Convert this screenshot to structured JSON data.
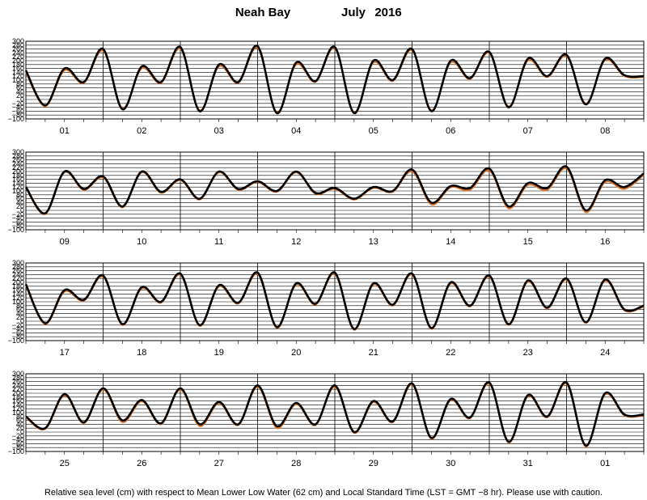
{
  "header": {
    "station": "Neah Bay",
    "month": "July",
    "year": "2016"
  },
  "footnote": "Relative sea level (cm) with respect to Mean Lower Low Water (62 cm) and Local Standard Time (LST = GMT −8 hr). Please use with caution.",
  "colors": {
    "observed": "#000000",
    "predicted": "#e06c1a",
    "grid": "#000000"
  },
  "chart_data": {
    "type": "line",
    "title": "Neah Bay July 2016",
    "ylabel": "",
    "xlabel": "",
    "ylim": [
      -100,
      300
    ],
    "yticks": [
      300,
      280,
      260,
      240,
      220,
      200,
      180,
      160,
      140,
      120,
      100,
      80,
      60,
      40,
      20,
      0,
      -20,
      -40,
      -60,
      -80,
      -100
    ],
    "panels": [
      {
        "days": [
          "01",
          "02",
          "03",
          "04",
          "05",
          "06",
          "07",
          "08"
        ]
      },
      {
        "days": [
          "09",
          "10",
          "11",
          "12",
          "13",
          "14",
          "15",
          "16"
        ]
      },
      {
        "days": [
          "17",
          "18",
          "19",
          "20",
          "21",
          "22",
          "23",
          "24"
        ]
      },
      {
        "days": [
          "25",
          "26",
          "27",
          "28",
          "29",
          "30",
          "31",
          "01"
        ]
      }
    ],
    "series": [
      {
        "style": "observed",
        "points_per_day": 4,
        "values": [
          150,
          -30,
          160,
          90,
          260,
          -50,
          170,
          90,
          270,
          -60,
          180,
          90,
          275,
          -70,
          190,
          95,
          270,
          -70,
          200,
          100,
          260,
          -60,
          200,
          110,
          245,
          -40,
          210,
          120,
          230,
          -25,
          210,
          125,
          120,
          -15,
          200,
          110,
          175,
          20,
          200,
          95,
          160,
          60,
          200,
          110,
          150,
          100,
          200,
          90,
          115,
          60,
          120,
          100,
          210,
          40,
          125,
          115,
          215,
          20,
          140,
          115,
          225,
          0,
          155,
          120,
          190,
          -10,
          160,
          110,
          235,
          -15,
          175,
          100,
          245,
          -20,
          185,
          95,
          250,
          -30,
          195,
          90,
          250,
          -40,
          195,
          85,
          245,
          -35,
          200,
          80,
          235,
          -15,
          210,
          70,
          220,
          -5,
          215,
          60,
          80,
          20,
          195,
          50,
          225,
          60,
          165,
          45,
          225,
          40,
          155,
          40,
          240,
          30,
          150,
          40,
          240,
          0,
          160,
          55,
          250,
          -30,
          170,
          75,
          255,
          -50,
          190,
          80,
          255,
          -70,
          200,
          90
        ]
      },
      {
        "style": "predicted",
        "points_per_day": 4,
        "values": [
          140,
          -35,
          150,
          85,
          250,
          -45,
          160,
          85,
          260,
          -55,
          170,
          85,
          265,
          -65,
          180,
          90,
          262,
          -65,
          190,
          95,
          252,
          -55,
          190,
          105,
          238,
          -35,
          200,
          115,
          222,
          -20,
          202,
          120,
          115,
          -20,
          195,
          105,
          168,
          15,
          195,
          90,
          155,
          55,
          195,
          105,
          145,
          95,
          195,
          85,
          110,
          55,
          115,
          95,
          200,
          30,
          118,
          105,
          205,
          10,
          130,
          105,
          215,
          -10,
          145,
          110,
          182,
          -15,
          152,
          105,
          228,
          -20,
          168,
          95,
          238,
          -25,
          178,
          90,
          242,
          -35,
          188,
          85,
          242,
          -45,
          188,
          80,
          238,
          -40,
          193,
          75,
          228,
          -20,
          203,
          65,
          213,
          -10,
          208,
          55,
          75,
          15,
          188,
          45,
          218,
          50,
          158,
          40,
          218,
          30,
          148,
          35,
          232,
          20,
          143,
          35,
          232,
          -5,
          153,
          50,
          242,
          -35,
          163,
          70,
          247,
          -55,
          183,
          75,
          247,
          -75,
          193,
          85
        ]
      }
    ]
  }
}
